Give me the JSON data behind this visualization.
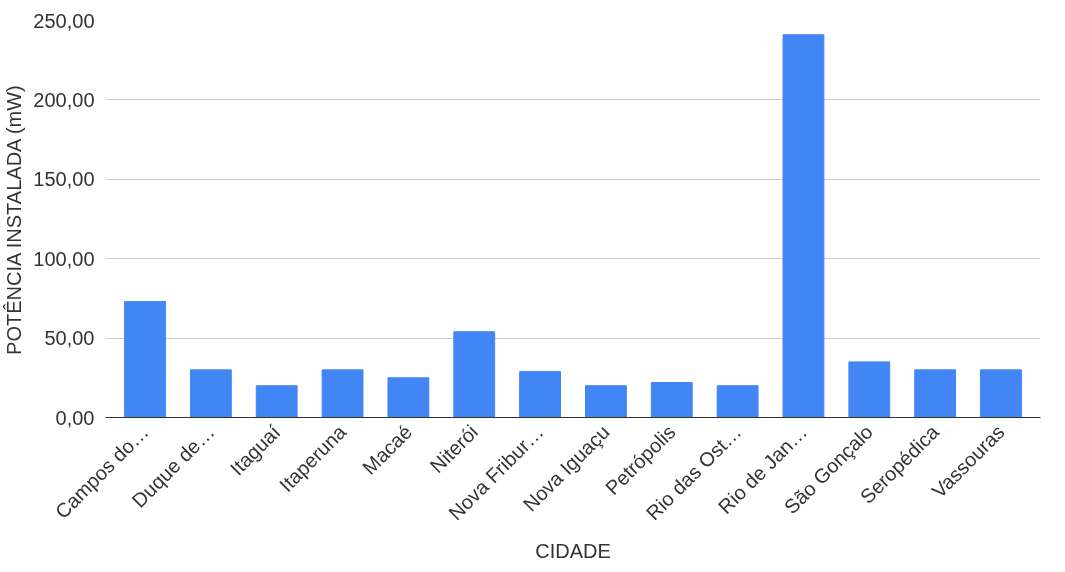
{
  "chart_data": {
    "type": "bar",
    "xlabel": "CIDADE",
    "ylabel": "POTÊNCIA INSTALADA (mW)",
    "categories": [
      "Campos do…",
      "Duque de…",
      "Itaguaí",
      "Itaperuna",
      "Macaé",
      "Niterói",
      "Nova Fribur…",
      "Nova Iguaçu",
      "Petrópolis",
      "Rio das Ost…",
      "Rio de Jan…",
      "São Gonçalo",
      "Seropédica",
      "Vassouras"
    ],
    "values": [
      73,
      30,
      20,
      30,
      25,
      54,
      29,
      20,
      22,
      20,
      241,
      35,
      30,
      30
    ],
    "color": "#4285f4",
    "ylim": [
      0,
      250
    ],
    "yticks": [
      {
        "value": 0,
        "label": "0,00"
      },
      {
        "value": 50,
        "label": "50,00"
      },
      {
        "value": 100,
        "label": "100,00"
      },
      {
        "value": 150,
        "label": "150,00"
      },
      {
        "value": 200,
        "label": "200,00"
      },
      {
        "value": 250,
        "label": "250,00"
      }
    ],
    "grid": "y"
  }
}
